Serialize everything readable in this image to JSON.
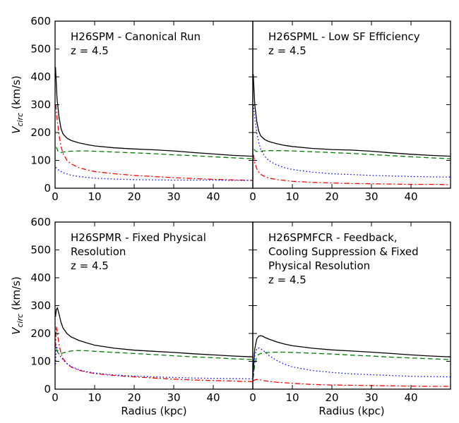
{
  "chart_data": [
    {
      "type": "line",
      "title_lines": [
        "H26SPM - Canonical Run",
        "z = 4.5"
      ],
      "xlabel": "",
      "ylabel": "V_circ (km/s)",
      "xlim": [
        0,
        50
      ],
      "ylim": [
        0,
        600
      ],
      "xticks": [
        "0",
        "10",
        "20",
        "30",
        "40"
      ],
      "yticks": [
        "0",
        "100",
        "200",
        "300",
        "400",
        "500",
        "600"
      ],
      "series": [
        {
          "name": "total",
          "color": "#000000",
          "dash": "solid",
          "x": [
            0.1,
            0.5,
            1,
            1.5,
            2,
            3,
            4,
            6,
            8,
            10,
            15,
            20,
            25,
            30,
            35,
            40,
            45,
            50
          ],
          "y": [
            435,
            320,
            255,
            215,
            195,
            180,
            172,
            163,
            157,
            152,
            145,
            141,
            138,
            134,
            128,
            123,
            118,
            115
          ]
        },
        {
          "name": "gas",
          "color": "#008000",
          "dash": "dashed",
          "x": [
            0.3,
            0.8,
            1.5,
            2.5,
            4,
            6,
            8,
            10,
            15,
            20,
            25,
            30,
            35,
            40,
            45,
            50
          ],
          "y": [
            148,
            130,
            128,
            131,
            133,
            134,
            134,
            133,
            130,
            127,
            124,
            120,
            117,
            113,
            109,
            106
          ]
        },
        {
          "name": "stars",
          "color": "#ff0000",
          "dash": "dashdot",
          "x": [
            0.2,
            0.5,
            1,
            1.5,
            2,
            3,
            4,
            6,
            8,
            10,
            15,
            20,
            25,
            30,
            35,
            40,
            45,
            50
          ],
          "y": [
            300,
            250,
            190,
            150,
            125,
            100,
            88,
            74,
            66,
            60,
            52,
            46,
            42,
            38,
            35,
            32,
            30,
            28
          ]
        },
        {
          "name": "dark matter",
          "color": "#0000ff",
          "dash": "dotted",
          "x": [
            0.2,
            1,
            2,
            4,
            6,
            10,
            15,
            20,
            25,
            30,
            35,
            40,
            45,
            50
          ],
          "y": [
            75,
            64,
            56,
            47,
            42,
            36,
            33,
            31,
            30,
            29,
            29,
            29,
            28,
            28
          ]
        }
      ]
    },
    {
      "type": "line",
      "title_lines": [
        "H26SPML - Low SF Efficiency",
        "z = 4.5"
      ],
      "xlabel": "",
      "ylabel": "",
      "xlim": [
        0,
        50
      ],
      "ylim": [
        0,
        600
      ],
      "xticks": [
        "0",
        "10",
        "20",
        "30",
        "40"
      ],
      "yticks": [],
      "series": [
        {
          "name": "total",
          "color": "#000000",
          "dash": "solid",
          "x": [
            0.1,
            0.5,
            1,
            1.5,
            2,
            3,
            4,
            6,
            8,
            10,
            15,
            20,
            25,
            30,
            35,
            40,
            45,
            50
          ],
          "y": [
            410,
            300,
            240,
            205,
            188,
            175,
            168,
            160,
            154,
            150,
            143,
            139,
            137,
            133,
            127,
            122,
            118,
            115
          ]
        },
        {
          "name": "gas",
          "color": "#008000",
          "dash": "dashed",
          "x": [
            0.3,
            0.8,
            1.5,
            2.5,
            4,
            6,
            8,
            10,
            15,
            20,
            25,
            30,
            35,
            40,
            45,
            50
          ],
          "y": [
            140,
            132,
            132,
            134,
            135,
            135,
            135,
            134,
            131,
            128,
            125,
            121,
            117,
            113,
            109,
            106
          ]
        },
        {
          "name": "stars",
          "color": "#ff0000",
          "dash": "dashdot",
          "x": [
            0.2,
            0.5,
            1,
            1.5,
            2,
            3,
            4,
            6,
            8,
            10,
            15,
            20,
            25,
            30,
            35,
            40,
            45,
            50
          ],
          "y": [
            120,
            90,
            70,
            58,
            50,
            42,
            37,
            31,
            28,
            25,
            21,
            19,
            17,
            16,
            15,
            14,
            14,
            13
          ]
        },
        {
          "name": "dark matter",
          "color": "#0000ff",
          "dash": "dotted",
          "x": [
            0.2,
            0.5,
            1,
            1.5,
            2,
            3,
            4,
            6,
            8,
            10,
            15,
            20,
            25,
            30,
            35,
            40,
            45,
            50
          ],
          "y": [
            300,
            250,
            200,
            165,
            140,
            115,
            100,
            84,
            74,
            67,
            58,
            52,
            49,
            46,
            44,
            42,
            41,
            40
          ]
        }
      ]
    },
    {
      "type": "line",
      "title_lines": [
        "H26SPMR - Fixed Physical",
        "Resolution",
        "z = 4.5"
      ],
      "xlabel": "Radius (kpc)",
      "ylabel": "V_circ (km/s)",
      "xlim": [
        0,
        50
      ],
      "ylim": [
        0,
        600
      ],
      "xticks": [
        "0",
        "10",
        "20",
        "30",
        "40"
      ],
      "yticks": [
        "0",
        "100",
        "200",
        "300",
        "400",
        "500",
        "600"
      ],
      "series": [
        {
          "name": "total",
          "color": "#000000",
          "dash": "solid",
          "x": [
            0.1,
            0.3,
            0.6,
            1,
            1.5,
            2,
            3,
            4,
            6,
            8,
            10,
            15,
            20,
            25,
            30,
            35,
            40,
            45,
            50
          ],
          "y": [
            260,
            285,
            292,
            270,
            240,
            220,
            200,
            188,
            175,
            166,
            158,
            147,
            140,
            136,
            132,
            127,
            123,
            119,
            116
          ]
        },
        {
          "name": "gas",
          "color": "#008000",
          "dash": "dashed",
          "x": [
            0.3,
            0.8,
            1.5,
            2.5,
            4,
            6,
            8,
            10,
            15,
            20,
            25,
            30,
            35,
            40,
            45,
            50
          ],
          "y": [
            145,
            128,
            128,
            132,
            137,
            139,
            138,
            136,
            132,
            128,
            124,
            120,
            116,
            113,
            109,
            106
          ]
        },
        {
          "name": "stars",
          "color": "#ff0000",
          "dash": "dashdot",
          "x": [
            0.1,
            0.3,
            0.6,
            1,
            1.5,
            2,
            3,
            4,
            6,
            8,
            10,
            15,
            20,
            25,
            30,
            35,
            40,
            45,
            50
          ],
          "y": [
            150,
            225,
            200,
            160,
            130,
            110,
            92,
            80,
            68,
            61,
            56,
            49,
            44,
            40,
            36,
            33,
            31,
            29,
            27
          ]
        },
        {
          "name": "dark matter",
          "color": "#0000ff",
          "dash": "dotted",
          "x": [
            0.1,
            0.3,
            0.6,
            1,
            1.5,
            2,
            3,
            4,
            6,
            8,
            10,
            15,
            20,
            25,
            30,
            35,
            40,
            45,
            50
          ],
          "y": [
            90,
            160,
            140,
            125,
            115,
            105,
            92,
            82,
            70,
            63,
            58,
            51,
            47,
            44,
            42,
            40,
            39,
            38,
            37
          ]
        }
      ]
    },
    {
      "type": "line",
      "title_lines": [
        "H26SPMFCR - Feedback,",
        "Cooling Suppression & Fixed",
        "Physical Resolution",
        "z = 4.5"
      ],
      "xlabel": "Radius (kpc)",
      "ylabel": "",
      "xlim": [
        0,
        50
      ],
      "ylim": [
        0,
        600
      ],
      "xticks": [
        "0",
        "10",
        "20",
        "30",
        "40"
      ],
      "yticks": [],
      "series": [
        {
          "name": "total",
          "color": "#000000",
          "dash": "solid",
          "x": [
            0.1,
            0.5,
            1,
            1.5,
            2,
            2.5,
            3,
            4,
            6,
            8,
            10,
            15,
            20,
            25,
            30,
            35,
            40,
            45,
            50
          ],
          "y": [
            60,
            145,
            180,
            190,
            192,
            190,
            186,
            180,
            170,
            162,
            156,
            147,
            141,
            137,
            133,
            128,
            123,
            119,
            116
          ]
        },
        {
          "name": "gas",
          "color": "#008000",
          "dash": "dashed",
          "x": [
            0.1,
            0.5,
            1,
            1.5,
            2,
            3,
            4,
            6,
            8,
            10,
            15,
            20,
            25,
            30,
            35,
            40,
            45,
            50
          ],
          "y": [
            40,
            90,
            115,
            125,
            128,
            131,
            132,
            133,
            133,
            132,
            129,
            126,
            122,
            119,
            115,
            112,
            109,
            106
          ]
        },
        {
          "name": "stars",
          "color": "#ff0000",
          "dash": "dashdot",
          "x": [
            0.1,
            0.5,
            1,
            2,
            3,
            4,
            6,
            8,
            10,
            15,
            20,
            25,
            30,
            35,
            40,
            45,
            50
          ],
          "y": [
            30,
            33,
            35,
            33,
            30,
            28,
            25,
            23,
            21,
            17,
            15,
            14,
            13,
            12,
            11,
            10,
            10
          ]
        },
        {
          "name": "dark matter",
          "color": "#0000ff",
          "dash": "dotted",
          "x": [
            0.1,
            0.5,
            1,
            1.5,
            2,
            3,
            4,
            6,
            8,
            10,
            15,
            20,
            25,
            30,
            35,
            40,
            45,
            50
          ],
          "y": [
            50,
            120,
            145,
            148,
            145,
            135,
            122,
            103,
            90,
            80,
            67,
            60,
            55,
            52,
            49,
            46,
            45,
            44
          ]
        }
      ]
    }
  ]
}
